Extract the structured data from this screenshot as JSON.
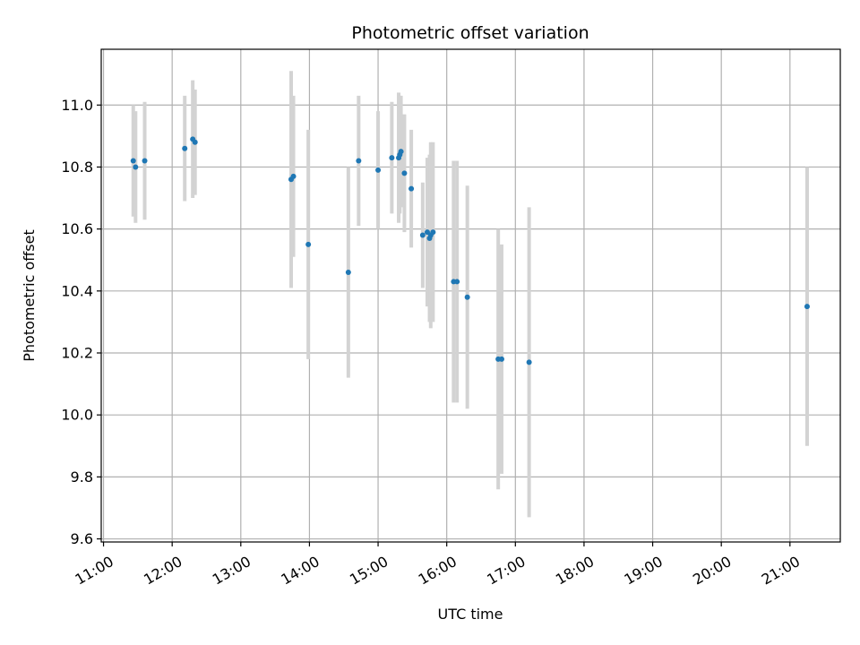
{
  "chart_data": {
    "type": "scatter",
    "title": "Photometric offset variation",
    "xlabel": "UTC time",
    "ylabel": "Photometric offset",
    "grid": true,
    "x_unit": "UTC time (hours)",
    "xlim": [
      "10:58",
      "21:44"
    ],
    "ylim": [
      9.59,
      11.18
    ],
    "xticks": [
      "11:00",
      "12:00",
      "13:00",
      "14:00",
      "15:00",
      "16:00",
      "17:00",
      "18:00",
      "19:00",
      "20:00",
      "21:00"
    ],
    "yticks": [
      "9.6",
      "9.8",
      "10.0",
      "10.2",
      "10.4",
      "10.6",
      "10.8",
      "11.0"
    ],
    "colors": {
      "points": "#1f77b4",
      "errorbars": "#d3d3d3",
      "grid": "#b0b0b0"
    },
    "series": [
      {
        "points": [
          {
            "x": "11:26",
            "y": 10.82,
            "err": 0.18
          },
          {
            "x": "11:28",
            "y": 10.8,
            "err": 0.18
          },
          {
            "x": "11:36",
            "y": 10.82,
            "err": 0.19
          },
          {
            "x": "12:11",
            "y": 10.86,
            "err": 0.17
          },
          {
            "x": "12:18",
            "y": 10.89,
            "err": 0.19
          },
          {
            "x": "12:20",
            "y": 10.88,
            "err": 0.17
          },
          {
            "x": "13:44",
            "y": 10.76,
            "err": 0.35
          },
          {
            "x": "13:46",
            "y": 10.77,
            "err": 0.26
          },
          {
            "x": "13:59",
            "y": 10.55,
            "err": 0.37
          },
          {
            "x": "14:34",
            "y": 10.46,
            "err": 0.34
          },
          {
            "x": "14:43",
            "y": 10.82,
            "err": 0.21
          },
          {
            "x": "15:00",
            "y": 10.79,
            "err": 0.19
          },
          {
            "x": "15:12",
            "y": 10.83,
            "err": 0.18
          },
          {
            "x": "15:18",
            "y": 10.83,
            "err": 0.21
          },
          {
            "x": "15:19",
            "y": 10.84,
            "err": 0.19
          },
          {
            "x": "15:20",
            "y": 10.85,
            "err": 0.18
          },
          {
            "x": "15:23",
            "y": 10.78,
            "err": 0.19
          },
          {
            "x": "15:29",
            "y": 10.73,
            "err": 0.19
          },
          {
            "x": "15:39",
            "y": 10.58,
            "err": 0.17
          },
          {
            "x": "15:43",
            "y": 10.59,
            "err": 0.24
          },
          {
            "x": "15:45",
            "y": 10.57,
            "err": 0.27
          },
          {
            "x": "15:46",
            "y": 10.58,
            "err": 0.3
          },
          {
            "x": "15:48",
            "y": 10.59,
            "err": 0.29
          },
          {
            "x": "16:06",
            "y": 10.43,
            "err": 0.39
          },
          {
            "x": "16:09",
            "y": 10.43,
            "err": 0.39
          },
          {
            "x": "16:18",
            "y": 10.38,
            "err": 0.36
          },
          {
            "x": "16:45",
            "y": 10.18,
            "err": 0.42
          },
          {
            "x": "16:48",
            "y": 10.18,
            "err": 0.37
          },
          {
            "x": "17:12",
            "y": 10.17,
            "err": 0.5
          },
          {
            "x": "21:15",
            "y": 10.35,
            "err": 0.45
          }
        ]
      }
    ]
  }
}
